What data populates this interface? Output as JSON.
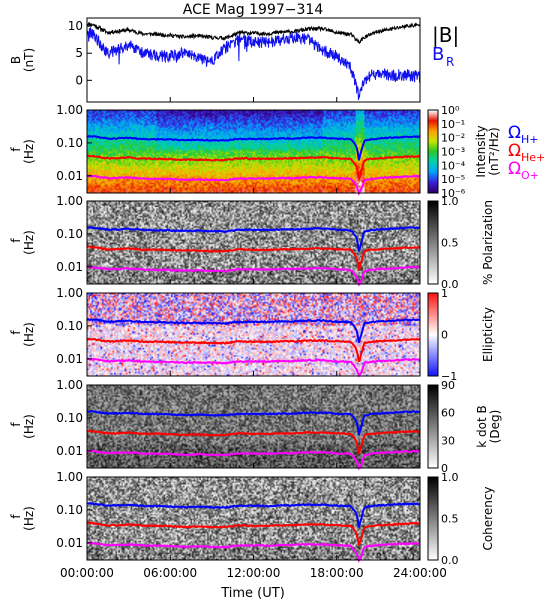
{
  "title": "ACE Mag 1997−314",
  "time_axis": {
    "label": "Time (UT)",
    "ticks": [
      "00:00:00",
      "06:00:00",
      "12:00:00",
      "18:00:00",
      "24:00:00"
    ],
    "hours": [
      0,
      6,
      12,
      18,
      24
    ],
    "range_hours": [
      0,
      24
    ]
  },
  "colors": {
    "b_total": "#000000",
    "b_r": "#1010ee",
    "omega_h": "#0000ff",
    "omega_he": "#ff0000",
    "omega_o": "#ff00ff"
  },
  "legend_b": {
    "total": "|B|",
    "radial": "B",
    "radial_sub": "R"
  },
  "legend_omega": [
    {
      "symbol": "Ω",
      "sub": "H+",
      "color": "#0000ff"
    },
    {
      "symbol": "Ω",
      "sub": "He+",
      "color": "#ff0000"
    },
    {
      "symbol": "Ω",
      "sub": "O+",
      "color": "#ff00ff"
    }
  ],
  "freq_axis": {
    "label": "f",
    "unit": "(Hz)",
    "ticks": [
      "1.00",
      "0.10",
      "0.01"
    ],
    "scale": "log",
    "range": [
      0.003,
      1.0
    ]
  },
  "chart_data": [
    {
      "type": "line",
      "panel": "B",
      "ylabel": "B",
      "yunit": "(nT)",
      "yticks": [
        "10",
        "5",
        "0"
      ],
      "ylim": [
        -4,
        11.5
      ],
      "x": [
        0,
        0.5,
        1,
        1.5,
        2,
        3,
        4,
        5,
        6,
        7,
        8,
        9,
        10,
        11,
        12,
        13,
        14,
        15,
        16,
        17,
        18,
        19,
        19.6,
        20,
        20.5,
        21,
        22,
        23,
        24
      ],
      "series": [
        {
          "name": "|B|",
          "values": [
            10.5,
            10.2,
            9.5,
            8.8,
            9.0,
            9.3,
            8.6,
            8.5,
            8.3,
            8.0,
            8.2,
            7.9,
            7.8,
            8.8,
            8.7,
            8.6,
            8.9,
            9.0,
            9.5,
            9.5,
            8.8,
            8.5,
            7.0,
            8.0,
            8.5,
            9.0,
            9.5,
            10.0,
            10.2
          ]
        },
        {
          "name": "B_R",
          "values": [
            9.0,
            8.5,
            6.5,
            5.0,
            5.5,
            6.5,
            5.0,
            4.5,
            4.5,
            5.0,
            4.0,
            3.5,
            6.0,
            7.5,
            7.0,
            7.0,
            7.5,
            7.8,
            7.5,
            5.5,
            4.5,
            2.5,
            -3.0,
            0.0,
            1.0,
            1.0,
            1.0,
            1.0,
            0.5
          ]
        }
      ]
    },
    {
      "type": "heatmap",
      "panel": "intensity",
      "colorbar_label": "Intensity",
      "colorbar_unit": "(nT²/Hz)",
      "colorbar_ticks": [
        "10⁰",
        "10⁻¹",
        "10⁻²",
        "10⁻³",
        "10⁻⁴",
        "10⁻⁵",
        "10⁻⁶"
      ],
      "colorbar_range": [
        -6,
        0
      ],
      "show_omega_legend": true
    },
    {
      "type": "heatmap",
      "panel": "polarization",
      "colorbar_label": "% Polarization",
      "colorbar_unit": "",
      "colorbar_ticks": [
        "1.0",
        "0.5",
        "0.0"
      ],
      "colorbar_range": [
        0,
        1
      ]
    },
    {
      "type": "heatmap",
      "panel": "ellipticity",
      "colorbar_label": "Ellipticity",
      "colorbar_unit": "",
      "colorbar_ticks": [
        "1",
        "0",
        "−1"
      ],
      "colorbar_range": [
        -1,
        1
      ]
    },
    {
      "type": "heatmap",
      "panel": "kdotb",
      "colorbar_label": "k dot B",
      "colorbar_unit": "(Deg)",
      "colorbar_ticks": [
        "90",
        "60",
        "30",
        "0"
      ],
      "colorbar_range": [
        0,
        90
      ]
    },
    {
      "type": "heatmap",
      "panel": "coherency",
      "colorbar_label": "Coherency",
      "colorbar_unit": "",
      "colorbar_ticks": [
        "1.0",
        "0.5",
        "0.0"
      ],
      "colorbar_range": [
        0,
        1
      ]
    }
  ],
  "gyrofrequency": {
    "x": [
      0,
      0.5,
      1,
      1.5,
      2,
      3,
      4,
      5,
      6,
      7,
      8,
      9,
      10,
      11,
      12,
      13,
      14,
      15,
      16,
      17,
      18,
      19,
      19.4,
      19.6,
      19.8,
      20,
      20.5,
      21,
      22,
      23,
      24
    ],
    "h_plus": [
      0.16,
      0.155,
      0.145,
      0.135,
      0.137,
      0.142,
      0.132,
      0.13,
      0.127,
      0.122,
      0.125,
      0.12,
      0.119,
      0.134,
      0.133,
      0.131,
      0.136,
      0.137,
      0.145,
      0.145,
      0.134,
      0.13,
      0.08,
      0.03,
      0.06,
      0.12,
      0.13,
      0.137,
      0.145,
      0.152,
      0.155
    ],
    "he_plus": [
      0.04,
      0.039,
      0.036,
      0.034,
      0.034,
      0.036,
      0.033,
      0.033,
      0.032,
      0.031,
      0.031,
      0.03,
      0.03,
      0.034,
      0.033,
      0.033,
      0.034,
      0.034,
      0.036,
      0.036,
      0.034,
      0.033,
      0.02,
      0.008,
      0.015,
      0.03,
      0.033,
      0.034,
      0.036,
      0.038,
      0.039
    ],
    "o_plus": [
      0.01,
      0.0097,
      0.009,
      0.0085,
      0.0086,
      0.0089,
      0.0083,
      0.0081,
      0.008,
      0.0076,
      0.0078,
      0.0075,
      0.0074,
      0.0084,
      0.0083,
      0.0082,
      0.0085,
      0.0086,
      0.009,
      0.009,
      0.0084,
      0.0081,
      0.005,
      0.003,
      0.004,
      0.0075,
      0.0081,
      0.0086,
      0.009,
      0.0095,
      0.0097
    ]
  }
}
